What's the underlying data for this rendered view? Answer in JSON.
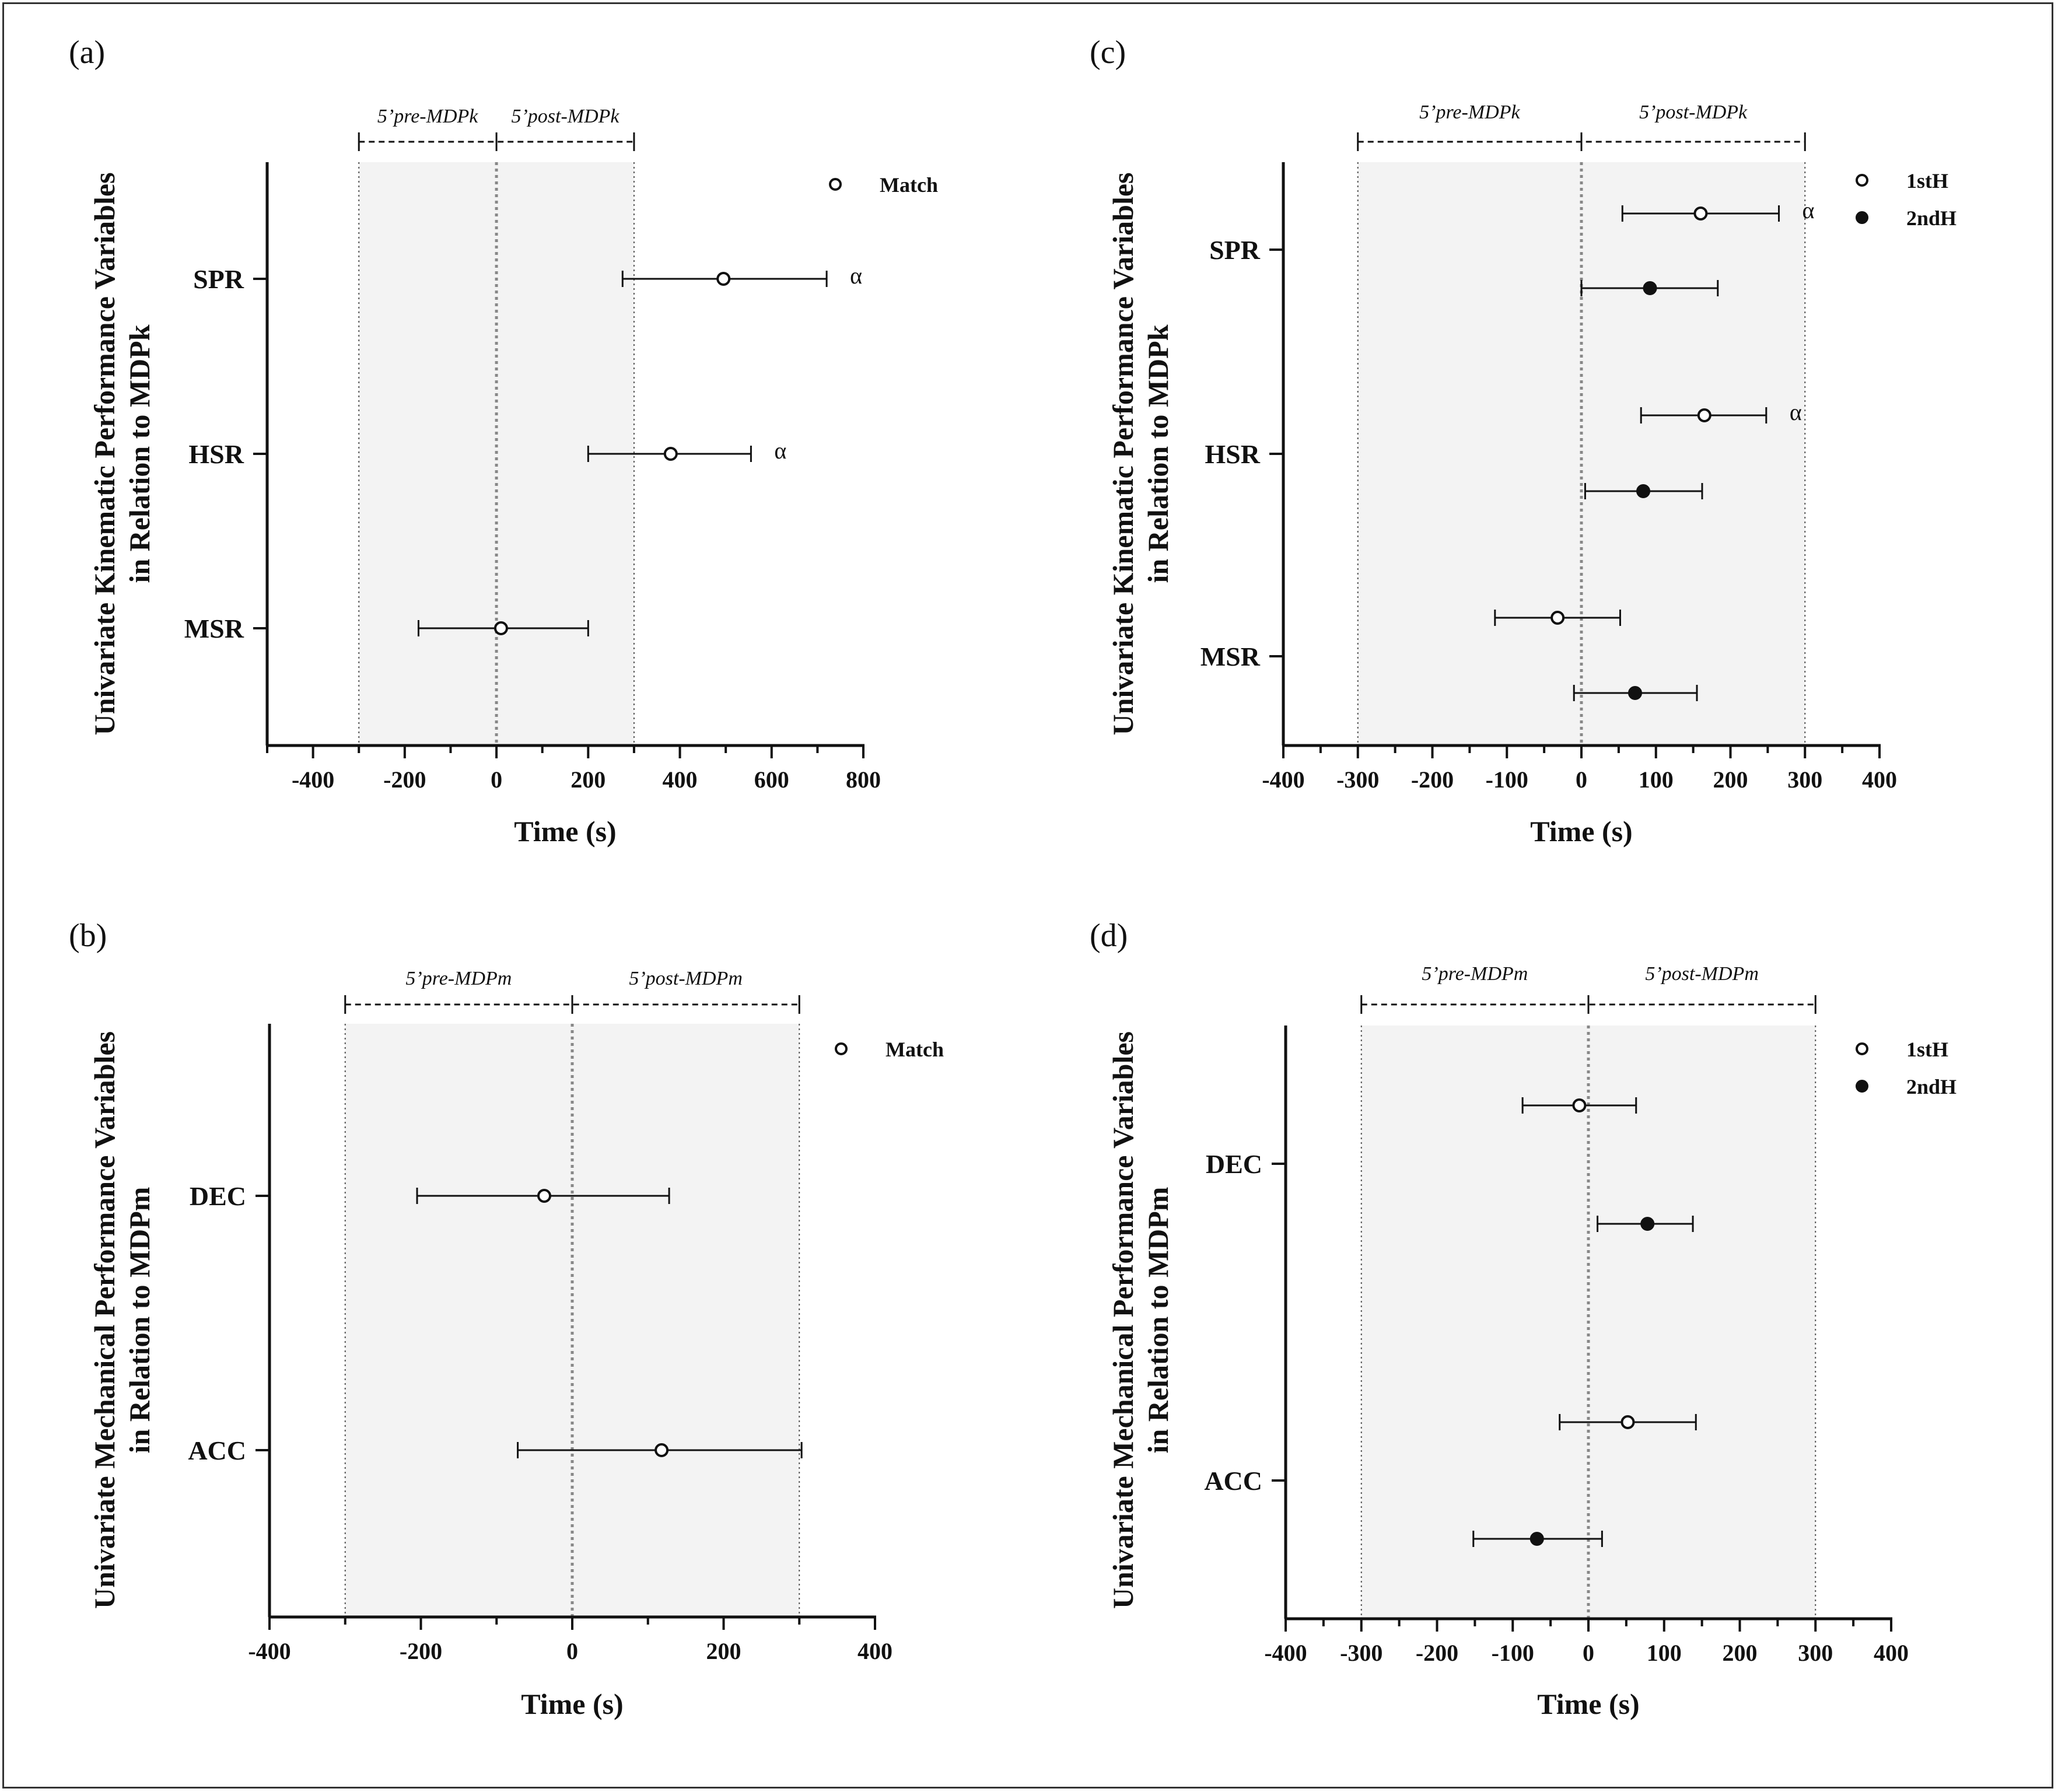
{
  "chart_data": [
    {
      "type": "scatter",
      "panel_label": "(a)",
      "ylabel_line1": "Univariate Kinematic Performance Variables",
      "ylabel_line2": "in Relation to MDPk",
      "xlabel": "Time (s)",
      "xlim": [
        -500,
        800
      ],
      "xticks": [
        -400,
        -200,
        0,
        200,
        400,
        600,
        800
      ],
      "window_labels": [
        "5’pre-MDPk",
        "5’post-MDPk"
      ],
      "window_range": [
        -300,
        0,
        300
      ],
      "categories": [
        "SPR",
        "HSR",
        "MSR"
      ],
      "legend": [
        {
          "name": "Match",
          "marker": "open"
        }
      ],
      "series": [
        {
          "name": "Match",
          "marker": "open",
          "points": [
            {
              "category": "SPR",
              "mean": 495,
              "lower": 275,
              "upper": 720,
              "mark": "α"
            },
            {
              "category": "HSR",
              "mean": 380,
              "lower": 200,
              "upper": 555,
              "mark": "α"
            },
            {
              "category": "MSR",
              "mean": 10,
              "lower": -170,
              "upper": 200,
              "mark": ""
            }
          ]
        }
      ]
    },
    {
      "type": "scatter",
      "panel_label": "(b)",
      "ylabel_line1": "Univariate Mechanical Performance Variables",
      "ylabel_line2": "in Relation to MDPm",
      "xlabel": "Time (s)",
      "xlim": [
        -400,
        400
      ],
      "xticks": [
        -400,
        -200,
        0,
        200,
        400
      ],
      "window_labels": [
        "5’pre-MDPm",
        "5’post-MDPm"
      ],
      "window_range": [
        -300,
        0,
        300
      ],
      "categories": [
        "DEC",
        "ACC"
      ],
      "legend": [
        {
          "name": "Match",
          "marker": "open"
        }
      ],
      "series": [
        {
          "name": "Match",
          "marker": "open",
          "points": [
            {
              "category": "DEC",
              "mean": -37,
              "lower": -205,
              "upper": 128,
              "mark": ""
            },
            {
              "category": "ACC",
              "mean": 118,
              "lower": -72,
              "upper": 303,
              "mark": ""
            }
          ]
        }
      ]
    },
    {
      "type": "scatter",
      "panel_label": "(c)",
      "ylabel_line1": "Univariate Kinematic Performance Variables",
      "ylabel_line2": "in Relation to MDPk",
      "xlabel": "Time (s)",
      "xlim": [
        -400,
        400
      ],
      "xticks": [
        -400,
        -300,
        -200,
        -100,
        0,
        100,
        200,
        300,
        400
      ],
      "window_labels": [
        "5’pre-MDPk",
        "5’post-MDPk"
      ],
      "window_range": [
        -300,
        0,
        300
      ],
      "categories": [
        "SPR",
        "HSR",
        "MSR"
      ],
      "legend": [
        {
          "name": "1stH",
          "marker": "open"
        },
        {
          "name": "2ndH",
          "marker": "filled"
        }
      ],
      "series": [
        {
          "name": "1stH",
          "marker": "open",
          "points": [
            {
              "category": "SPR",
              "mean": 160,
              "lower": 55,
              "upper": 265,
              "mark": "α"
            },
            {
              "category": "HSR",
              "mean": 165,
              "lower": 80,
              "upper": 248,
              "mark": "α"
            },
            {
              "category": "MSR",
              "mean": -32,
              "lower": -116,
              "upper": 52,
              "mark": ""
            }
          ]
        },
        {
          "name": "2ndH",
          "marker": "filled",
          "points": [
            {
              "category": "SPR",
              "mean": 92,
              "lower": 0,
              "upper": 183,
              "mark": ""
            },
            {
              "category": "HSR",
              "mean": 83,
              "lower": 5,
              "upper": 162,
              "mark": ""
            },
            {
              "category": "MSR",
              "mean": 72,
              "lower": -10,
              "upper": 155,
              "mark": ""
            }
          ]
        }
      ]
    },
    {
      "type": "scatter",
      "panel_label": "(d)",
      "ylabel_line1": "Univariate Mechanical Performance Variables",
      "ylabel_line2": "in Relation to MDPm",
      "xlabel": "Time (s)",
      "xlim": [
        -400,
        400
      ],
      "xticks": [
        -400,
        -300,
        -200,
        -100,
        0,
        100,
        200,
        300,
        400
      ],
      "window_labels": [
        "5’pre-MDPm",
        "5’post-MDPm"
      ],
      "window_range": [
        -300,
        0,
        300
      ],
      "categories": [
        "DEC",
        "ACC"
      ],
      "legend": [
        {
          "name": "1stH",
          "marker": "open"
        },
        {
          "name": "2ndH",
          "marker": "filled"
        }
      ],
      "series": [
        {
          "name": "1stH",
          "marker": "open",
          "points": [
            {
              "category": "DEC",
              "mean": -12,
              "lower": -87,
              "upper": 63,
              "mark": ""
            },
            {
              "category": "ACC",
              "mean": 52,
              "lower": -38,
              "upper": 142,
              "mark": ""
            }
          ]
        },
        {
          "name": "2ndH",
          "marker": "filled",
          "points": [
            {
              "category": "DEC",
              "mean": 78,
              "lower": 12,
              "upper": 138,
              "mark": ""
            },
            {
              "category": "ACC",
              "mean": -68,
              "lower": -152,
              "upper": 18,
              "mark": ""
            }
          ]
        }
      ]
    }
  ]
}
